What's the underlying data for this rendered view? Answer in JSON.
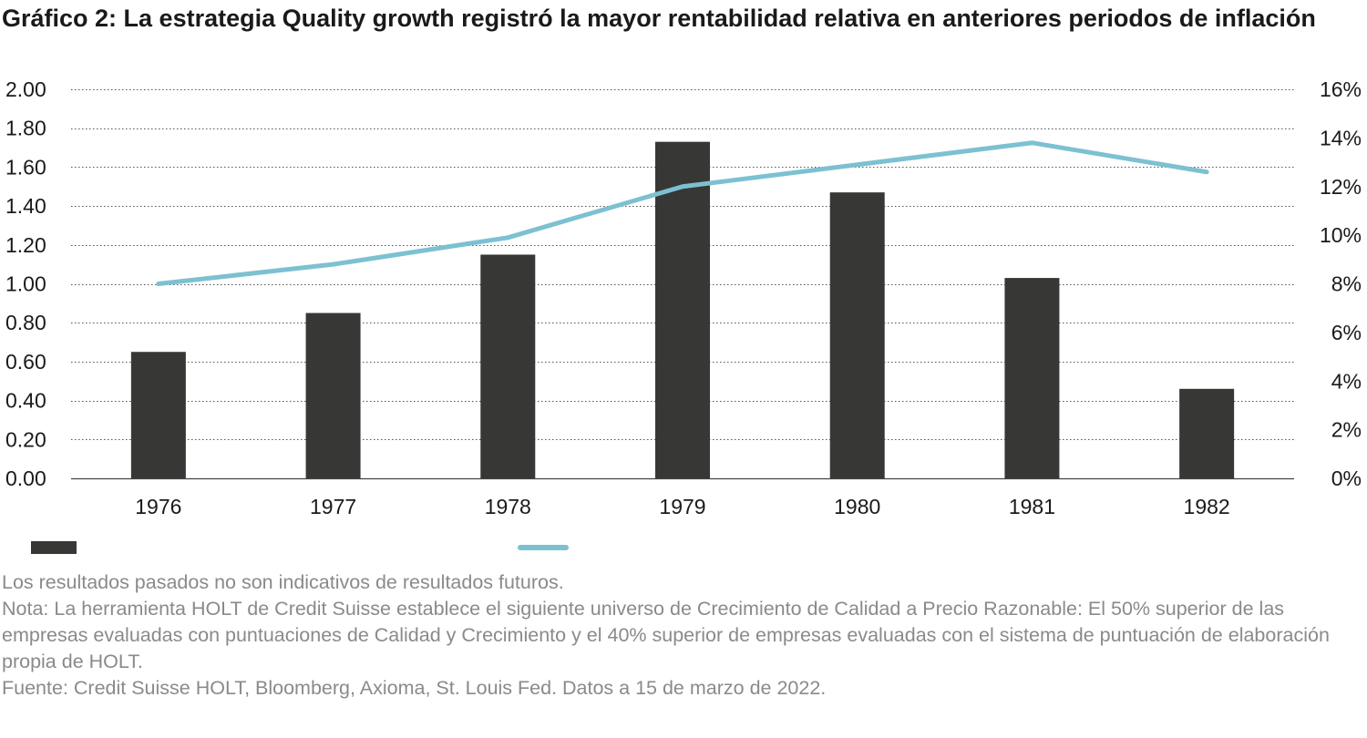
{
  "title": "Gráfico 2: La estrategia Quality growth registró la mayor rentabilidad relativa en anteriores periodos de inflación",
  "colors": {
    "bar": "#373836",
    "line": "#7cc1d1",
    "grid": "#555555",
    "note": "#8a8a8a"
  },
  "chart_data": {
    "type": "bar",
    "categories": [
      "1976",
      "1977",
      "1978",
      "1979",
      "1980",
      "1981",
      "1982"
    ],
    "series": [
      {
        "type": "bar",
        "axis": "left",
        "values": [
          0.65,
          0.85,
          1.15,
          1.73,
          1.47,
          1.03,
          0.46
        ]
      },
      {
        "type": "line",
        "axis": "right",
        "values": [
          8.0,
          8.8,
          9.9,
          12.0,
          12.9,
          13.8,
          12.6
        ]
      }
    ],
    "yleft": {
      "min": 0,
      "max": 2,
      "step": 0.2,
      "ticks": [
        "0.00",
        "0.20",
        "0.40",
        "0.60",
        "0.80",
        "1.00",
        "1.20",
        "1.40",
        "1.60",
        "1.80",
        "2.00"
      ]
    },
    "yright": {
      "min": 0,
      "max": 16,
      "step": 2,
      "ticks": [
        "0%",
        "2%",
        "4%",
        "6%",
        "8%",
        "10%",
        "12%",
        "14%",
        "16%"
      ]
    },
    "grid": true,
    "legend": "bottom-left"
  },
  "notes": [
    "Los resultados pasados no son indicativos de resultados futuros.",
    "Nota: La herramienta HOLT de Credit Suisse establece el siguiente universo de Crecimiento de Calidad a Precio Razonable: El 50% superior de las empresas evaluadas con puntuaciones de Calidad y Crecimiento y el 40% superior de empresas evaluadas con el sistema de puntuación de elaboración propia de HOLT.",
    "Fuente: Credit Suisse HOLT, Bloomberg, Axioma, St. Louis Fed. Datos a 15 de marzo de 2022."
  ]
}
